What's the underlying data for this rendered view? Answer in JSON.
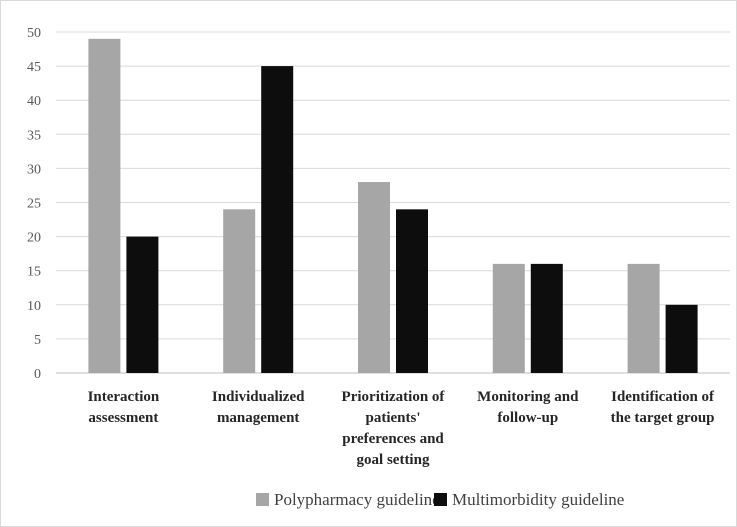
{
  "chart_data": {
    "type": "bar",
    "title": "",
    "xlabel": "",
    "ylabel": "",
    "ylim": [
      0,
      50
    ],
    "ytick_step": 5,
    "grid": "horizontal",
    "legend_position": "bottom",
    "categories": [
      [
        "Interaction",
        "assessment"
      ],
      [
        "Individualized",
        "management"
      ],
      [
        "Prioritization of",
        "patients'",
        "preferences and",
        "goal setting"
      ],
      [
        "Monitoring and",
        "follow-up"
      ],
      [
        "Identification of",
        "the target group"
      ]
    ],
    "series": [
      {
        "name": "Polypharmacy guideline",
        "color": "#a6a6a6",
        "values": [
          49,
          24,
          28,
          16,
          16
        ]
      },
      {
        "name": "Multimorbidity guideline",
        "color": "#0d0d0d",
        "values": [
          20,
          45,
          24,
          16,
          10
        ]
      }
    ]
  }
}
